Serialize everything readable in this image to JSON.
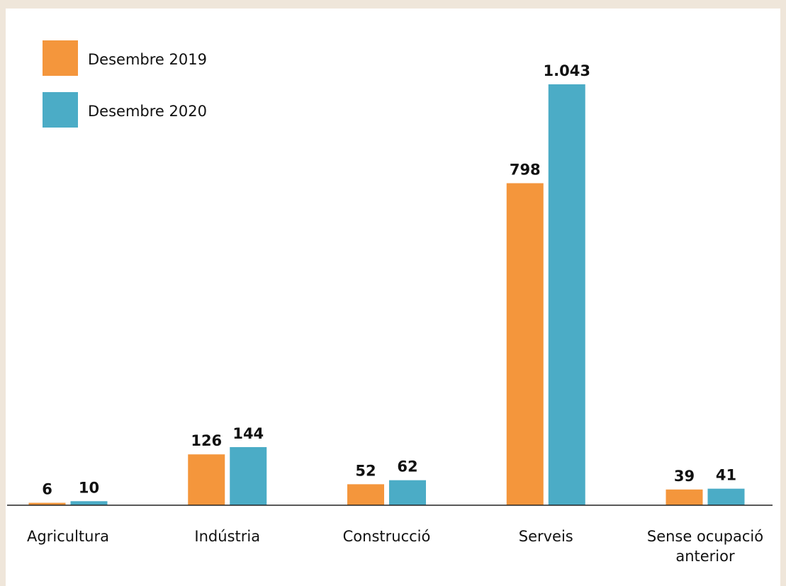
{
  "chart_data": {
    "type": "bar",
    "categories": [
      "Agricultura",
      "Indústria",
      "Construcció",
      "Serveis",
      "Sense ocupació anterior"
    ],
    "series": [
      {
        "name": "Desembre 2019",
        "color": "#f4963c",
        "values": [
          6,
          126,
          52,
          798,
          39
        ]
      },
      {
        "name": "Desembre 2020",
        "color": "#4bacc6",
        "values": [
          10,
          144,
          62,
          1043,
          41
        ],
        "value_labels": [
          "10",
          "144",
          "62",
          "1.043",
          "41"
        ]
      }
    ],
    "legend": "upper left"
  }
}
